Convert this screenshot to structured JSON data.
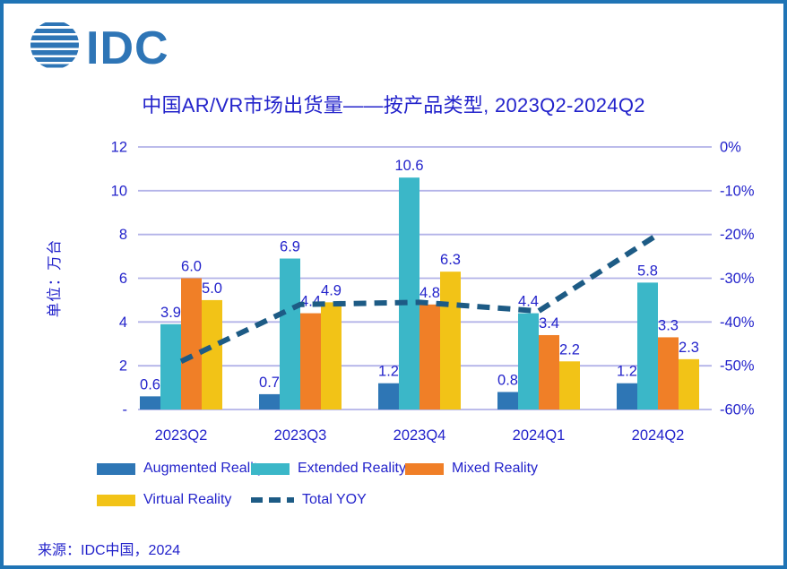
{
  "logo": {
    "text": "IDC",
    "color": "#2E75B6"
  },
  "title": "中国AR/VR市场出货量——按产品类型, 2023Q2-2024Q2",
  "source": "来源：IDC中国，2024",
  "colors": {
    "text": "#2323CB",
    "grid": "#B3B3E8",
    "frame": "#1F74B5"
  },
  "chart_data": {
    "type": "bar",
    "title": "中国AR/VR市场出货量——按产品类型, 2023Q2-2024Q2",
    "categories": [
      "2023Q2",
      "2023Q3",
      "2023Q4",
      "2024Q1",
      "2024Q2"
    ],
    "series": [
      {
        "name": "Augmented Reality",
        "color": "#2E76B5",
        "values": [
          0.6,
          0.7,
          1.2,
          0.8,
          1.2
        ]
      },
      {
        "name": "Extended Reality",
        "color": "#3BB7C8",
        "values": [
          3.9,
          6.9,
          10.6,
          4.4,
          5.8
        ]
      },
      {
        "name": "Mixed Reality",
        "color": "#F07F27",
        "values": [
          6.0,
          4.4,
          4.8,
          3.4,
          3.3
        ]
      },
      {
        "name": "Virtual Reality",
        "color": "#F2C317",
        "values": [
          5.0,
          4.9,
          6.3,
          2.2,
          2.3
        ]
      }
    ],
    "line": {
      "name": "Total YOY",
      "color": "#1D5B85",
      "axis": "right",
      "values_pct": [
        -49,
        -36,
        -35.5,
        -37.5,
        -20
      ]
    },
    "left_axis": {
      "title": "单位：万台",
      "ticks": [
        "12",
        "10",
        "8",
        "6",
        "4",
        "2",
        "-"
      ],
      "range": [
        0,
        12
      ]
    },
    "right_axis": {
      "ticks": [
        "0%",
        "-10%",
        "-20%",
        "-30%",
        "-40%",
        "-50%",
        "-60%"
      ],
      "range": [
        0,
        -60
      ]
    },
    "legend": {
      "position": "bottom",
      "rows": [
        [
          "Augmented Reality",
          "Extended Reality",
          "Mixed Reality"
        ],
        [
          "Virtual Reality",
          "Total YOY"
        ]
      ]
    },
    "grid": true,
    "data_labels": true,
    "data_label_format": "0.0"
  }
}
